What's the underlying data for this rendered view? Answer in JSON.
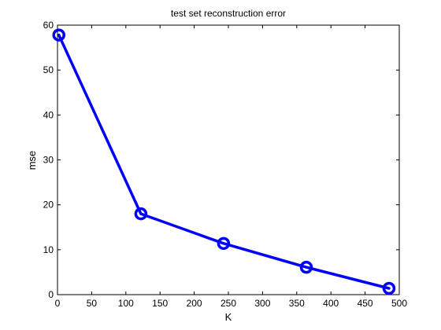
{
  "chart_data": {
    "type": "line",
    "title": "test set reconstruction error",
    "xlabel": "K",
    "ylabel": "mse",
    "xlim": [
      0,
      500
    ],
    "ylim": [
      0,
      60
    ],
    "xticks": [
      0,
      50,
      100,
      150,
      200,
      250,
      300,
      350,
      400,
      450,
      500
    ],
    "yticks": [
      0,
      10,
      20,
      30,
      40,
      50,
      60
    ],
    "grid": false,
    "series": [
      {
        "x": [
          2,
          122,
          243,
          364,
          485
        ],
        "y": [
          57.8,
          18.0,
          11.4,
          6.1,
          1.4
        ],
        "color": "#0000ff",
        "marker": "circle"
      }
    ]
  }
}
